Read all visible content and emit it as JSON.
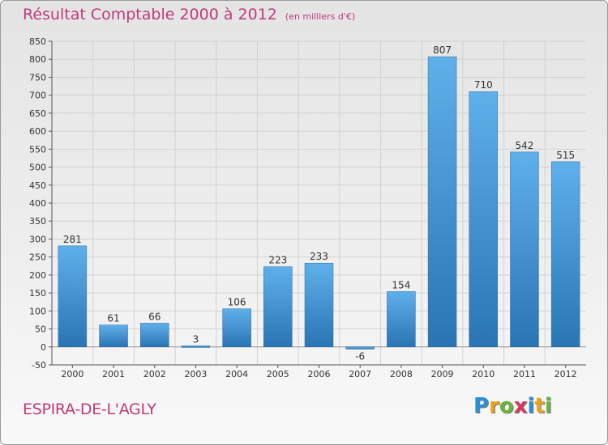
{
  "title": "Résultat Comptable 2000 à 2012",
  "subtitle": "(en milliers d'€)",
  "commune": "ESPIRA-DE-L'AGLY",
  "logo": {
    "text": "Proxiti",
    "letters": [
      {
        "char": "P",
        "color": "#2a8fd6"
      },
      {
        "char": "r",
        "color": "#e8a21d"
      },
      {
        "char": "o",
        "color": "#6ab43e"
      },
      {
        "char": "x",
        "color": "#d6385b"
      },
      {
        "char": "i",
        "color": "#2a8fd6"
      },
      {
        "char": "t",
        "color": "#e8a21d"
      },
      {
        "char": "i",
        "color": "#6ab43e"
      }
    ]
  },
  "colors": {
    "title": "#c0397a",
    "bar_light": "#5fb0ea",
    "bar_dark": "#2a74b4",
    "grid": "#d2d2d2",
    "axis": "#555555"
  },
  "chart_data": {
    "type": "bar",
    "title": "Résultat Comptable 2000 à 2012",
    "subtitle": "(en milliers d'€)",
    "xlabel": "",
    "ylabel": "",
    "categories": [
      "2000",
      "2001",
      "2002",
      "2003",
      "2004",
      "2005",
      "2006",
      "2007",
      "2008",
      "2009",
      "2010",
      "2011",
      "2012"
    ],
    "values": [
      281,
      61,
      66,
      3,
      106,
      223,
      233,
      -6,
      154,
      807,
      710,
      542,
      515
    ],
    "value_labels": [
      "281",
      "61",
      "66",
      "3",
      "106",
      "223",
      "233",
      "-6",
      "154",
      "807",
      "710",
      "542",
      "515"
    ],
    "ylim": [
      -50,
      850
    ],
    "yticks": [
      -50,
      0,
      50,
      100,
      150,
      200,
      250,
      300,
      350,
      400,
      450,
      500,
      550,
      600,
      650,
      700,
      750,
      800,
      850
    ],
    "grid": true,
    "legend": "none"
  }
}
